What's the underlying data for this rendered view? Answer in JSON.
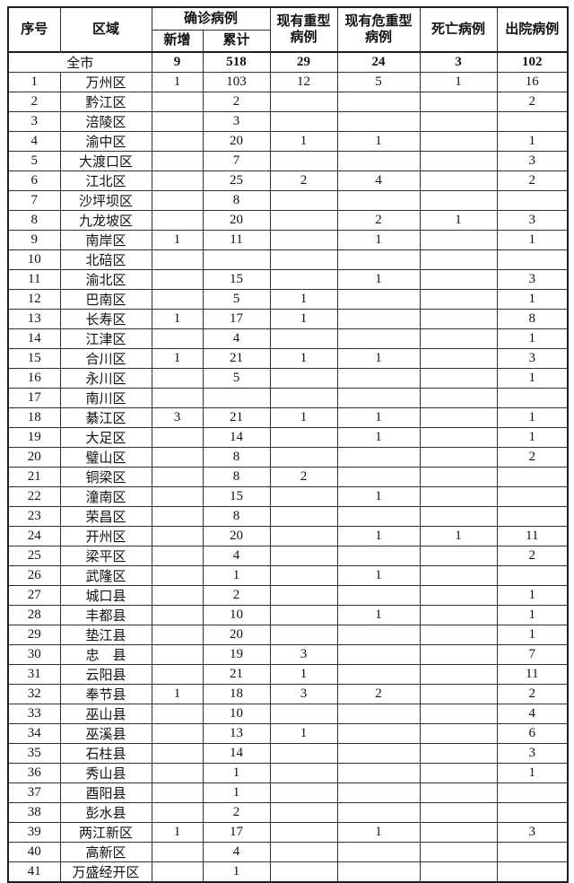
{
  "table": {
    "headers": {
      "serial": "序号",
      "region": "区域",
      "confirmed_group": "确诊病例",
      "new": "新增",
      "cumulative": "累计",
      "severe_line1": "现有重型",
      "severe_line2": "病例",
      "critical_line1": "现有危重型",
      "critical_line2": "病例",
      "death": "死亡病例",
      "discharged": "出院病例"
    },
    "total_row": {
      "region": "全市",
      "new": "9",
      "cumulative": "518",
      "severe": "29",
      "critical": "24",
      "death": "3",
      "discharged": "102"
    },
    "rows": [
      {
        "no": "1",
        "region": "万州区",
        "new": "1",
        "cum": "103",
        "severe": "12",
        "critical": "5",
        "death": "1",
        "discharged": "16"
      },
      {
        "no": "2",
        "region": "黔江区",
        "new": "",
        "cum": "2",
        "severe": "",
        "critical": "",
        "death": "",
        "discharged": "2"
      },
      {
        "no": "3",
        "region": "涪陵区",
        "new": "",
        "cum": "3",
        "severe": "",
        "critical": "",
        "death": "",
        "discharged": ""
      },
      {
        "no": "4",
        "region": "渝中区",
        "new": "",
        "cum": "20",
        "severe": "1",
        "critical": "1",
        "death": "",
        "discharged": "1"
      },
      {
        "no": "5",
        "region": "大渡口区",
        "new": "",
        "cum": "7",
        "severe": "",
        "critical": "",
        "death": "",
        "discharged": "3"
      },
      {
        "no": "6",
        "region": "江北区",
        "new": "",
        "cum": "25",
        "severe": "2",
        "critical": "4",
        "death": "",
        "discharged": "2"
      },
      {
        "no": "7",
        "region": "沙坪坝区",
        "new": "",
        "cum": "8",
        "severe": "",
        "critical": "",
        "death": "",
        "discharged": ""
      },
      {
        "no": "8",
        "region": "九龙坡区",
        "new": "",
        "cum": "20",
        "severe": "",
        "critical": "2",
        "death": "1",
        "discharged": "3"
      },
      {
        "no": "9",
        "region": "南岸区",
        "new": "1",
        "cum": "11",
        "severe": "",
        "critical": "1",
        "death": "",
        "discharged": "1"
      },
      {
        "no": "10",
        "region": "北碚区",
        "new": "",
        "cum": "",
        "severe": "",
        "critical": "",
        "death": "",
        "discharged": ""
      },
      {
        "no": "11",
        "region": "渝北区",
        "new": "",
        "cum": "15",
        "severe": "",
        "critical": "1",
        "death": "",
        "discharged": "3"
      },
      {
        "no": "12",
        "region": "巴南区",
        "new": "",
        "cum": "5",
        "severe": "1",
        "critical": "",
        "death": "",
        "discharged": "1"
      },
      {
        "no": "13",
        "region": "长寿区",
        "new": "1",
        "cum": "17",
        "severe": "1",
        "critical": "",
        "death": "",
        "discharged": "8"
      },
      {
        "no": "14",
        "region": "江津区",
        "new": "",
        "cum": "4",
        "severe": "",
        "critical": "",
        "death": "",
        "discharged": "1"
      },
      {
        "no": "15",
        "region": "合川区",
        "new": "1",
        "cum": "21",
        "severe": "1",
        "critical": "1",
        "death": "",
        "discharged": "3"
      },
      {
        "no": "16",
        "region": "永川区",
        "new": "",
        "cum": "5",
        "severe": "",
        "critical": "",
        "death": "",
        "discharged": "1"
      },
      {
        "no": "17",
        "region": "南川区",
        "new": "",
        "cum": "",
        "severe": "",
        "critical": "",
        "death": "",
        "discharged": ""
      },
      {
        "no": "18",
        "region": "綦江区",
        "new": "3",
        "cum": "21",
        "severe": "1",
        "critical": "1",
        "death": "",
        "discharged": "1"
      },
      {
        "no": "19",
        "region": "大足区",
        "new": "",
        "cum": "14",
        "severe": "",
        "critical": "1",
        "death": "",
        "discharged": "1"
      },
      {
        "no": "20",
        "region": "璧山区",
        "new": "",
        "cum": "8",
        "severe": "",
        "critical": "",
        "death": "",
        "discharged": "2"
      },
      {
        "no": "21",
        "region": "铜梁区",
        "new": "",
        "cum": "8",
        "severe": "2",
        "critical": "",
        "death": "",
        "discharged": ""
      },
      {
        "no": "22",
        "region": "潼南区",
        "new": "",
        "cum": "15",
        "severe": "",
        "critical": "1",
        "death": "",
        "discharged": ""
      },
      {
        "no": "23",
        "region": "荣昌区",
        "new": "",
        "cum": "8",
        "severe": "",
        "critical": "",
        "death": "",
        "discharged": ""
      },
      {
        "no": "24",
        "region": "开州区",
        "new": "",
        "cum": "20",
        "severe": "",
        "critical": "1",
        "death": "1",
        "discharged": "11"
      },
      {
        "no": "25",
        "region": "梁平区",
        "new": "",
        "cum": "4",
        "severe": "",
        "critical": "",
        "death": "",
        "discharged": "2"
      },
      {
        "no": "26",
        "region": "武隆区",
        "new": "",
        "cum": "1",
        "severe": "",
        "critical": "1",
        "death": "",
        "discharged": ""
      },
      {
        "no": "27",
        "region": "城口县",
        "new": "",
        "cum": "2",
        "severe": "",
        "critical": "",
        "death": "",
        "discharged": "1"
      },
      {
        "no": "28",
        "region": "丰都县",
        "new": "",
        "cum": "10",
        "severe": "",
        "critical": "1",
        "death": "",
        "discharged": "1"
      },
      {
        "no": "29",
        "region": "垫江县",
        "new": "",
        "cum": "20",
        "severe": "",
        "critical": "",
        "death": "",
        "discharged": "1"
      },
      {
        "no": "30",
        "region": "忠　县",
        "new": "",
        "cum": "19",
        "severe": "3",
        "critical": "",
        "death": "",
        "discharged": "7"
      },
      {
        "no": "31",
        "region": "云阳县",
        "new": "",
        "cum": "21",
        "severe": "1",
        "critical": "",
        "death": "",
        "discharged": "11"
      },
      {
        "no": "32",
        "region": "奉节县",
        "new": "1",
        "cum": "18",
        "severe": "3",
        "critical": "2",
        "death": "",
        "discharged": "2"
      },
      {
        "no": "33",
        "region": "巫山县",
        "new": "",
        "cum": "10",
        "severe": "",
        "critical": "",
        "death": "",
        "discharged": "4"
      },
      {
        "no": "34",
        "region": "巫溪县",
        "new": "",
        "cum": "13",
        "severe": "1",
        "critical": "",
        "death": "",
        "discharged": "6"
      },
      {
        "no": "35",
        "region": "石柱县",
        "new": "",
        "cum": "14",
        "severe": "",
        "critical": "",
        "death": "",
        "discharged": "3"
      },
      {
        "no": "36",
        "region": "秀山县",
        "new": "",
        "cum": "1",
        "severe": "",
        "critical": "",
        "death": "",
        "discharged": "1"
      },
      {
        "no": "37",
        "region": "酉阳县",
        "new": "",
        "cum": "1",
        "severe": "",
        "critical": "",
        "death": "",
        "discharged": ""
      },
      {
        "no": "38",
        "region": "彭水县",
        "new": "",
        "cum": "2",
        "severe": "",
        "critical": "",
        "death": "",
        "discharged": ""
      },
      {
        "no": "39",
        "region": "两江新区",
        "new": "1",
        "cum": "17",
        "severe": "",
        "critical": "1",
        "death": "",
        "discharged": "3"
      },
      {
        "no": "40",
        "region": "高新区",
        "new": "",
        "cum": "4",
        "severe": "",
        "critical": "",
        "death": "",
        "discharged": ""
      },
      {
        "no": "41",
        "region": "万盛经开区",
        "new": "",
        "cum": "1",
        "severe": "",
        "critical": "",
        "death": "",
        "discharged": ""
      }
    ],
    "colors": {
      "border": "#2f2f2f",
      "outer_border": "#1f1f1f",
      "text": "#111111",
      "background": "#ffffff"
    }
  }
}
